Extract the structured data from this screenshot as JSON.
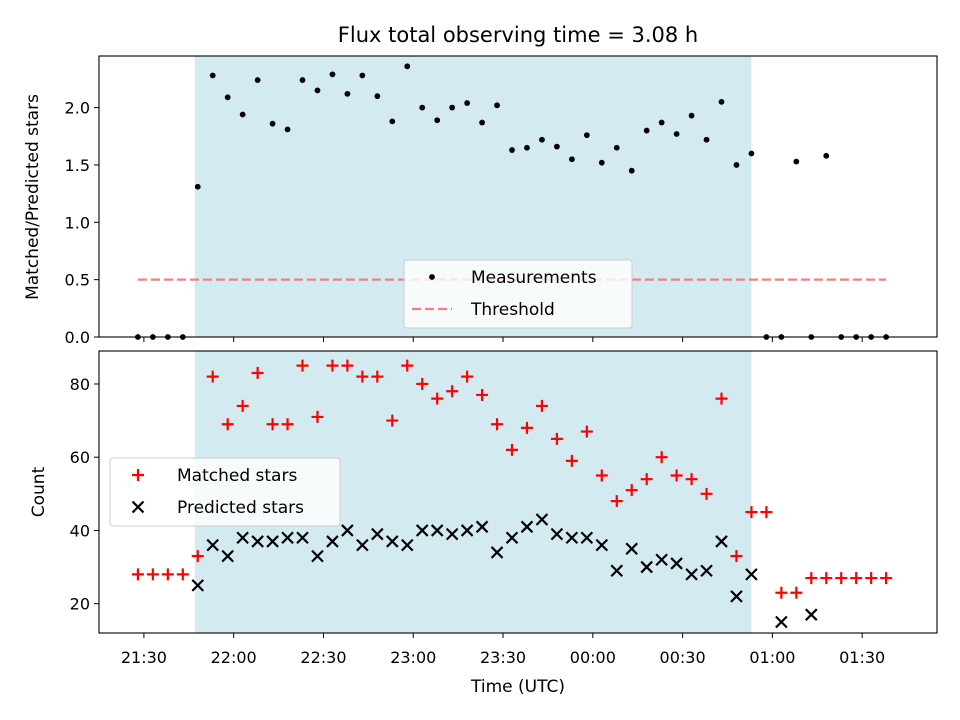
{
  "chart_data": [
    {
      "type": "scatter",
      "title": "Flux total observing time = 3.08 h",
      "xlabel": "",
      "ylabel": "Matched/Predicted stars",
      "xlim": [
        "21:15",
        "01:55"
      ],
      "ylim": [
        0,
        2.45
      ],
      "yticks": [
        0.0,
        0.5,
        1.0,
        1.5,
        2.0
      ],
      "ytick_labels": [
        "0.0",
        "0.5",
        "1.0",
        "1.5",
        "2.0"
      ],
      "observing_window": {
        "start": "21:47",
        "end": "00:53",
        "color": "#d4eaf1"
      },
      "threshold": {
        "value": 0.5,
        "x_start": "21:28",
        "x_end": "01:38",
        "color": "#f08080"
      },
      "legend": {
        "placement": "lower center",
        "entries": [
          "Measurements",
          "Threshold"
        ]
      },
      "series": [
        {
          "name": "Measurements",
          "marker": "dot",
          "color": "#000000",
          "x": [
            "21:28",
            "21:33",
            "21:38",
            "21:43",
            "21:48",
            "21:53",
            "21:58",
            "22:03",
            "22:08",
            "22:13",
            "22:18",
            "22:23",
            "22:28",
            "22:33",
            "22:38",
            "22:43",
            "22:48",
            "22:53",
            "22:58",
            "23:03",
            "23:08",
            "23:13",
            "23:18",
            "23:23",
            "23:28",
            "23:33",
            "23:38",
            "23:43",
            "23:48",
            "23:53",
            "23:58",
            "00:03",
            "00:08",
            "00:13",
            "00:18",
            "00:23",
            "00:28",
            "00:33",
            "00:38",
            "00:43",
            "00:48",
            "00:53",
            "00:58",
            "01:03",
            "01:08",
            "01:13",
            "01:18",
            "01:23",
            "01:28",
            "01:33",
            "01:38"
          ],
          "y": [
            0,
            0,
            0,
            0,
            1.31,
            2.28,
            2.09,
            1.94,
            2.24,
            1.86,
            1.81,
            2.24,
            2.15,
            2.29,
            2.12,
            2.28,
            2.1,
            1.88,
            2.36,
            2.0,
            1.89,
            2.0,
            2.04,
            1.87,
            2.02,
            1.63,
            1.65,
            1.72,
            1.66,
            1.55,
            1.76,
            1.52,
            1.65,
            1.45,
            1.8,
            1.87,
            1.77,
            1.93,
            1.72,
            2.05,
            1.5,
            1.6,
            0,
            0,
            1.53,
            0,
            1.58,
            0,
            0,
            0,
            0
          ]
        }
      ]
    },
    {
      "type": "scatter",
      "title": "",
      "xlabel": "Time (UTC)",
      "ylabel": "Count",
      "xlim": [
        "21:15",
        "01:55"
      ],
      "ylim": [
        12,
        89
      ],
      "yticks": [
        20,
        40,
        60,
        80
      ],
      "ytick_labels": [
        "20",
        "40",
        "60",
        "80"
      ],
      "xticks": [
        "21:30",
        "22:00",
        "22:30",
        "23:00",
        "23:30",
        "00:00",
        "00:30",
        "01:00",
        "01:30"
      ],
      "observing_window": {
        "start": "21:47",
        "end": "00:53",
        "color": "#d4eaf1"
      },
      "legend": {
        "placement": "center-left",
        "entries": [
          "Matched stars",
          "Predicted stars"
        ]
      },
      "series": [
        {
          "name": "Matched stars",
          "marker": "plus",
          "color": "#ff0000",
          "x": [
            "21:28",
            "21:33",
            "21:38",
            "21:43",
            "21:48",
            "21:53",
            "21:58",
            "22:03",
            "22:08",
            "22:13",
            "22:18",
            "22:23",
            "22:28",
            "22:33",
            "22:38",
            "22:43",
            "22:48",
            "22:53",
            "22:58",
            "23:03",
            "23:08",
            "23:13",
            "23:18",
            "23:23",
            "23:28",
            "23:33",
            "23:38",
            "23:43",
            "23:48",
            "23:53",
            "23:58",
            "00:03",
            "00:08",
            "00:13",
            "00:18",
            "00:23",
            "00:28",
            "00:33",
            "00:38",
            "00:43",
            "00:48",
            "00:53",
            "00:58",
            "01:03",
            "01:08",
            "01:13",
            "01:18",
            "01:23",
            "01:28",
            "01:33",
            "01:38"
          ],
          "y": [
            28,
            28,
            28,
            28,
            33,
            82,
            69,
            74,
            83,
            69,
            69,
            85,
            71,
            85,
            85,
            82,
            82,
            70,
            85,
            80,
            76,
            78,
            82,
            77,
            69,
            62,
            68,
            74,
            65,
            59,
            67,
            55,
            48,
            51,
            54,
            60,
            55,
            54,
            50,
            76,
            33,
            45,
            45,
            23,
            23,
            27,
            27,
            27,
            27,
            27,
            27
          ]
        },
        {
          "name": "Predicted stars",
          "marker": "x",
          "color": "#000000",
          "x": [
            "21:48",
            "21:53",
            "21:58",
            "22:03",
            "22:08",
            "22:13",
            "22:18",
            "22:23",
            "22:28",
            "22:33",
            "22:38",
            "22:43",
            "22:48",
            "22:53",
            "22:58",
            "23:03",
            "23:08",
            "23:13",
            "23:18",
            "23:23",
            "23:28",
            "23:33",
            "23:38",
            "23:43",
            "23:48",
            "23:53",
            "23:58",
            "00:03",
            "00:08",
            "00:13",
            "00:18",
            "00:23",
            "00:28",
            "00:33",
            "00:38",
            "00:43",
            "00:48",
            "00:53",
            "01:03",
            "01:13"
          ],
          "y": [
            25,
            36,
            33,
            38,
            37,
            37,
            38,
            38,
            33,
            37,
            40,
            36,
            39,
            37,
            36,
            40,
            40,
            39,
            40,
            41,
            34,
            38,
            41,
            43,
            39,
            38,
            38,
            36,
            29,
            35,
            30,
            32,
            31,
            28,
            29,
            37,
            22,
            28,
            15,
            17
          ]
        }
      ]
    }
  ]
}
